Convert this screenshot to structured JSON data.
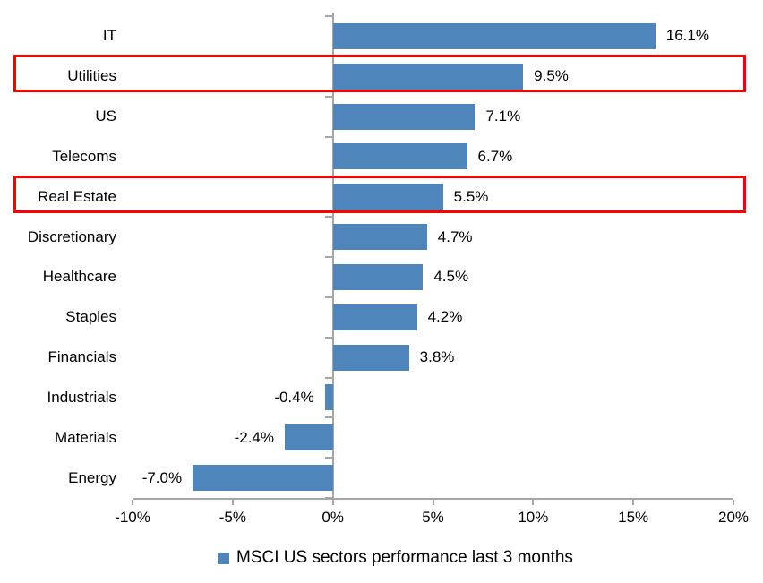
{
  "chart_data": {
    "type": "bar",
    "orientation": "horizontal",
    "categories": [
      "IT",
      "Utilities",
      "US",
      "Telecoms",
      "Real Estate",
      "Discretionary",
      "Healthcare",
      "Staples",
      "Financials",
      "Industrials",
      "Materials",
      "Energy"
    ],
    "values": [
      16.1,
      9.5,
      7.1,
      6.7,
      5.5,
      4.7,
      4.5,
      4.2,
      3.8,
      -0.4,
      -2.4,
      -7.0
    ],
    "value_labels": [
      "16.1%",
      "9.5%",
      "7.1%",
      "6.7%",
      "5.5%",
      "4.7%",
      "4.5%",
      "4.2%",
      "3.8%",
      "-0.4%",
      "-2.4%",
      "-7.0%"
    ],
    "highlighted_categories": [
      "Utilities",
      "Real Estate"
    ],
    "x_axis": {
      "min": -10,
      "max": 20,
      "tick_values": [
        -10,
        -5,
        0,
        5,
        10,
        15,
        20
      ],
      "ticks": [
        "-10%",
        "-5%",
        "0%",
        "5%",
        "10%",
        "15%",
        "20%"
      ],
      "grid": false
    },
    "legend": {
      "position": "bottom",
      "label": "MSCI US sectors performance last 3 months",
      "marker": "square-icon"
    },
    "colors": {
      "bar": "#4e86bc",
      "highlight_box": "#ff0000",
      "axis": "#a6a6a6",
      "text": "#000000"
    }
  }
}
